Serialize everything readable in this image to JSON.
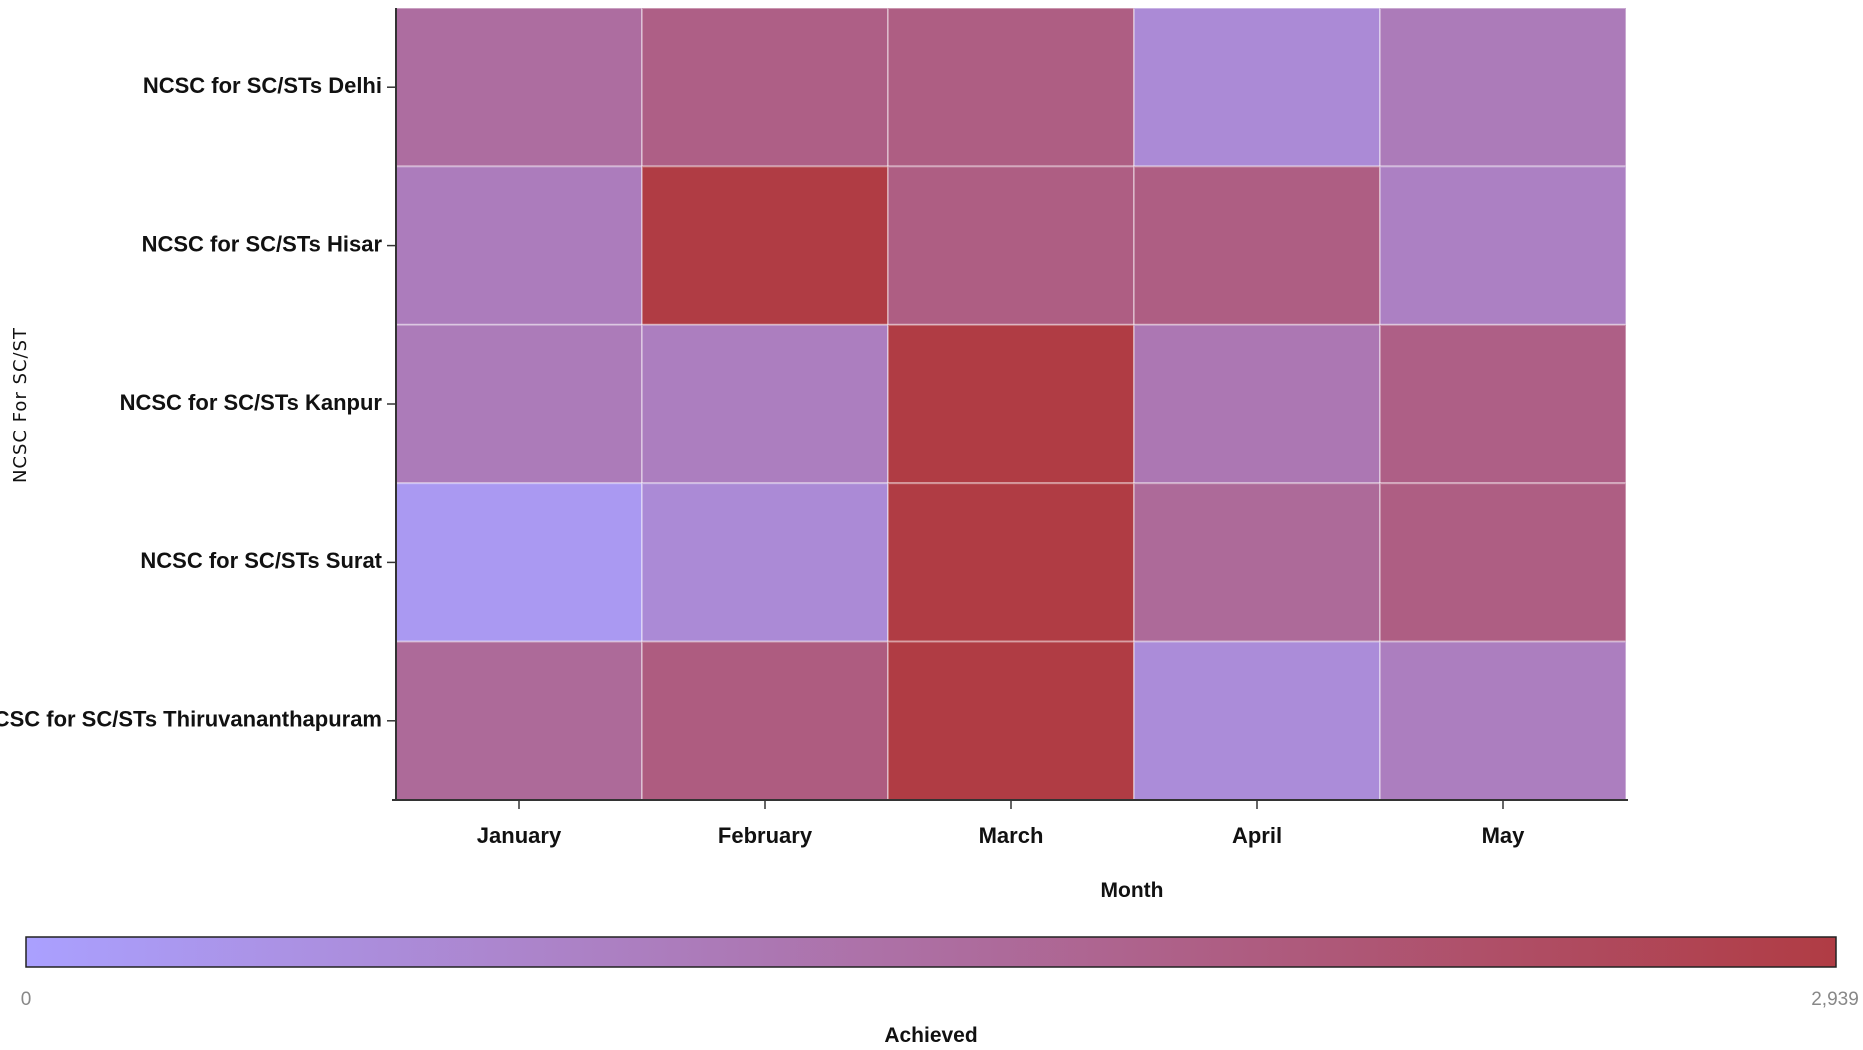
{
  "chart_data": {
    "type": "heatmap",
    "xlabel": "Month",
    "ylabel": "NCSC For SC/ST",
    "x_categories": [
      "January",
      "February",
      "March",
      "April",
      "May"
    ],
    "y_categories": [
      "NCSC for SC/STs Delhi",
      "NCSC for SC/STs Hisar",
      "NCSC for SC/STs Kanpur",
      "NCSC for SC/STs Surat",
      "NCSC for SC/STs Thiruvananthapuram"
    ],
    "values": [
      [
        1500,
        1900,
        1950,
        650,
        1100
      ],
      [
        1050,
        2939,
        1950,
        1950,
        950
      ],
      [
        1100,
        1000,
        2939,
        1200,
        1900
      ],
      [
        200,
        650,
        2939,
        1600,
        1950
      ],
      [
        1600,
        2000,
        2939,
        600,
        1000
      ]
    ],
    "colorbar": {
      "title": "Achieved",
      "min": 0,
      "max": 2939,
      "min_label": "0",
      "max_label": "2,939",
      "low_color": "#aaa0ff",
      "high_color": "#b03c44"
    }
  }
}
